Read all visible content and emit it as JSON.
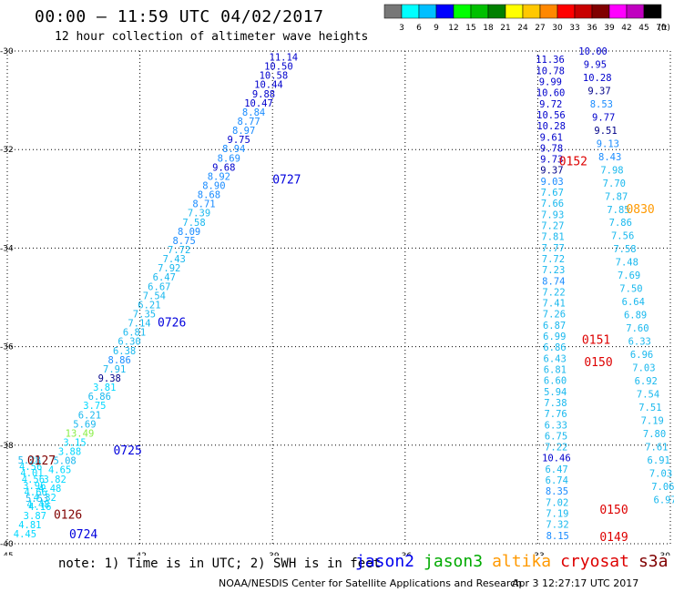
{
  "header": {
    "title": "00:00 — 11:59 UTC 04/02/2017",
    "subtitle": "12 hour collection of altimeter wave heights"
  },
  "colorbar": {
    "labels": [
      "3",
      "6",
      "9",
      "12",
      "15",
      "18",
      "21",
      "24",
      "27",
      "30",
      "33",
      "36",
      "39",
      "42",
      "45",
      "70",
      "(ft)"
    ],
    "colors": [
      "#777777",
      "#00ffff",
      "#00bfff",
      "#0000ff",
      "#00ff00",
      "#00c000",
      "#008000",
      "#ffff00",
      "#ffc800",
      "#ff8800",
      "#ff0000",
      "#c80000",
      "#800000",
      "#ff00ff",
      "#c000c0",
      "#000000"
    ]
  },
  "footer": {
    "note": "note: 1) Time is in UTC; 2) SWH is in feet",
    "satellites": [
      {
        "name": "jason2",
        "color": "#0000ee"
      },
      {
        "name": "jason3",
        "color": "#00aa00"
      },
      {
        "name": "altika",
        "color": "#ff9900"
      },
      {
        "name": "cryosat",
        "color": "#dd0000"
      },
      {
        "name": "s3a",
        "color": "#800000"
      }
    ],
    "credit": "NOAA/NESDIS Center for Satellite Applications and Research",
    "timestamp": "Apr  3 12:27:17 UTC 2017"
  },
  "chart_data": {
    "type": "scatter",
    "xlim": [
      -45,
      -30
    ],
    "ylim": [
      -40,
      -30
    ],
    "x_ticks": [
      "-45",
      "-42",
      "-39",
      "-36",
      "-33",
      "-30"
    ],
    "y_ticks": [
      "-30",
      "-32",
      "-34",
      "-36",
      "-38",
      "-40"
    ],
    "grid": true,
    "tracks": [
      {
        "start": [
          -38.75,
          -30.12
        ],
        "end": [
          -44.6,
          -39.8
        ],
        "values": [
          "11.14",
          "10.50",
          "10.58",
          "10.44",
          "9.88",
          "10.47",
          "8.84",
          "8.77",
          "8.97",
          "9.75",
          "8.94",
          "8.69",
          "9.68",
          "8.92",
          "8.90",
          "8.68",
          "8.71",
          "7.39",
          "7.58",
          "8.09",
          "8.75",
          "7.72",
          "7.43",
          "7.92",
          "6.47",
          "6.67",
          "7.54",
          "6.21",
          "7.35",
          "7.14",
          "6.81",
          "6.30",
          "6.38",
          "8.86",
          "7.91",
          "9.38",
          "3.81",
          "6.86",
          "3.75",
          "6.21",
          "5.69",
          "13.49",
          "3.15",
          "3.88",
          "5.08",
          "4.65",
          "3.82",
          "4.48",
          "4.32",
          "4.16",
          "3.87",
          "4.81",
          "4.45"
        ]
      },
      {
        "start": [
          -44.5,
          -38.3
        ],
        "end": [
          -44.3,
          -39.2
        ],
        "values": [
          "5.28",
          "4.56",
          "4.01",
          "4.56",
          "3.96",
          "4.66",
          "5.53",
          "4.48"
        ]
      },
      {
        "start": [
          -32.72,
          -30.17
        ],
        "end": [
          -32.55,
          -39.83
        ],
        "values": [
          "11.36",
          "10.78",
          "9.99",
          "10.60",
          "9.72",
          "10.56",
          "10.28",
          "9.61",
          "9.78",
          "9.73",
          "9.37",
          "9.03",
          "7.67",
          "7.66",
          "7.93",
          "7.27",
          "7.81",
          "7.77",
          "7.72",
          "7.23",
          "8.74",
          "7.22",
          "7.41",
          "7.26",
          "6.87",
          "6.99",
          "6.86",
          "6.43",
          "6.81",
          "6.60",
          "5.94",
          "7.38",
          "7.76",
          "6.33",
          "6.75",
          "7.22",
          "10.46",
          "6.47",
          "6.74",
          "8.35",
          "7.02",
          "7.19",
          "7.32",
          "8.15"
        ]
      },
      {
        "start": [
          -31.75,
          -30.0
        ],
        "end": [
          -30.12,
          -39.1
        ],
        "values": [
          "10.00",
          "9.95",
          "10.28",
          "9.37",
          "8.53",
          "9.77",
          "9.51",
          "9.13",
          "8.43",
          "7.98",
          "7.70",
          "7.87",
          "7.85",
          "7.86",
          "7.56",
          "7.58",
          "7.48",
          "7.69",
          "7.50",
          "6.64",
          "6.89",
          "7.60",
          "6.33",
          "6.96",
          "7.03",
          "6.92",
          "7.54",
          "7.51",
          "7.19",
          "7.80",
          "7.61",
          "6.91",
          "7.03",
          "7.06",
          "6.97"
        ]
      }
    ],
    "pass_labels": [
      {
        "text": "0727",
        "x": -39.0,
        "y": -32.6,
        "color": "#0000dd"
      },
      {
        "text": "0726",
        "x": -41.6,
        "y": -35.5,
        "color": "#0000dd"
      },
      {
        "text": "0725",
        "x": -42.6,
        "y": -38.1,
        "color": "#0000dd"
      },
      {
        "text": "0724",
        "x": -43.6,
        "y": -39.8,
        "color": "#0000dd"
      },
      {
        "text": "0127",
        "x": -44.55,
        "y": -38.3,
        "color": "#800000"
      },
      {
        "text": "0126",
        "x": -43.95,
        "y": -39.4,
        "color": "#800000"
      },
      {
        "text": "0152",
        "x": -32.52,
        "y": -32.23,
        "color": "#dd0000"
      },
      {
        "text": "0151",
        "x": -32.0,
        "y": -35.85,
        "color": "#dd0000"
      },
      {
        "text": "0150",
        "x": -31.95,
        "y": -36.3,
        "color": "#dd0000"
      },
      {
        "text": "0150",
        "x": -31.6,
        "y": -39.3,
        "color": "#dd0000"
      },
      {
        "text": "0149",
        "x": -31.6,
        "y": -39.85,
        "color": "#dd0000"
      },
      {
        "text": "0830",
        "x": -31.0,
        "y": -33.2,
        "color": "#ff9900"
      }
    ]
  }
}
